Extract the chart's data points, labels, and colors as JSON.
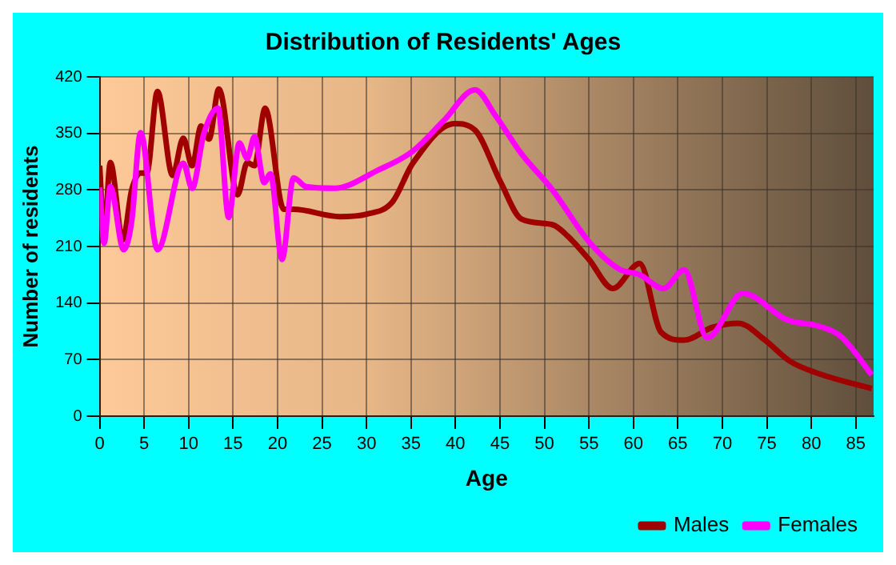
{
  "chart_data": {
    "type": "line",
    "title": "Distribution of Residents' Ages",
    "xlabel": "Age",
    "ylabel": "Number of residents",
    "xlim": [
      0,
      87
    ],
    "xticks": [
      0,
      5,
      10,
      15,
      20,
      25,
      30,
      35,
      40,
      45,
      50,
      55,
      60,
      65,
      70,
      75,
      80,
      85
    ],
    "ylim": [
      0,
      420
    ],
    "yticks": [
      0,
      70,
      140,
      210,
      280,
      350,
      420
    ],
    "grid": true,
    "legend": "bottom right",
    "marker": "none",
    "line_style": "solid",
    "series": [
      {
        "name": "Males",
        "color": "#a00000",
        "x": [
          0,
          0.5,
          1.2,
          2.6,
          3.6,
          4.6,
          5.3,
          6.5,
          8.2,
          9.4,
          10.4,
          11.4,
          12.3,
          13.4,
          15.5,
          16.6,
          17.4,
          18.6,
          20.7,
          21.8,
          27,
          30,
          32.9,
          35.2,
          39.9,
          42.2,
          45.1,
          47.4,
          50.9,
          52.6,
          55,
          57.7,
          60.7,
          63.1,
          65.7,
          68.9,
          71.8,
          74.7,
          77.6,
          81,
          86.8
        ],
        "values": [
          310,
          223,
          314,
          218,
          280,
          301,
          301,
          402,
          298,
          344,
          310,
          359,
          343,
          405,
          274,
          314,
          310,
          381,
          256,
          256,
          247,
          250,
          265,
          313,
          362,
          354,
          289,
          244,
          237,
          223,
          194,
          158,
          189,
          104,
          94,
          110,
          115,
          95,
          68,
          52,
          34
        ]
      },
      {
        "name": "Females",
        "color": "#ff00ff",
        "x": [
          0,
          0.5,
          1.2,
          2.7,
          3.6,
          4.6,
          6.5,
          9.4,
          10.4,
          11.7,
          13.3,
          14.5,
          15.7,
          16.6,
          17.4,
          18.5,
          19.2,
          20.5,
          21.8,
          23.2,
          26.4,
          31.2,
          35.2,
          38.7,
          42.2,
          44.5,
          47.4,
          50.9,
          55,
          58.4,
          60.7,
          63.4,
          65.7,
          68.3,
          72.3,
          77.3,
          81,
          83.4,
          86.8
        ],
        "values": [
          283,
          214,
          284,
          206,
          241,
          351,
          206,
          313,
          282,
          349,
          381,
          246,
          338,
          319,
          346,
          289,
          300,
          194,
          295,
          284,
          282,
          304,
          328,
          366,
          404,
          372,
          325,
          280,
          216,
          182,
          175,
          158,
          181,
          97,
          152,
          119,
          111,
          98,
          51
        ]
      }
    ]
  }
}
